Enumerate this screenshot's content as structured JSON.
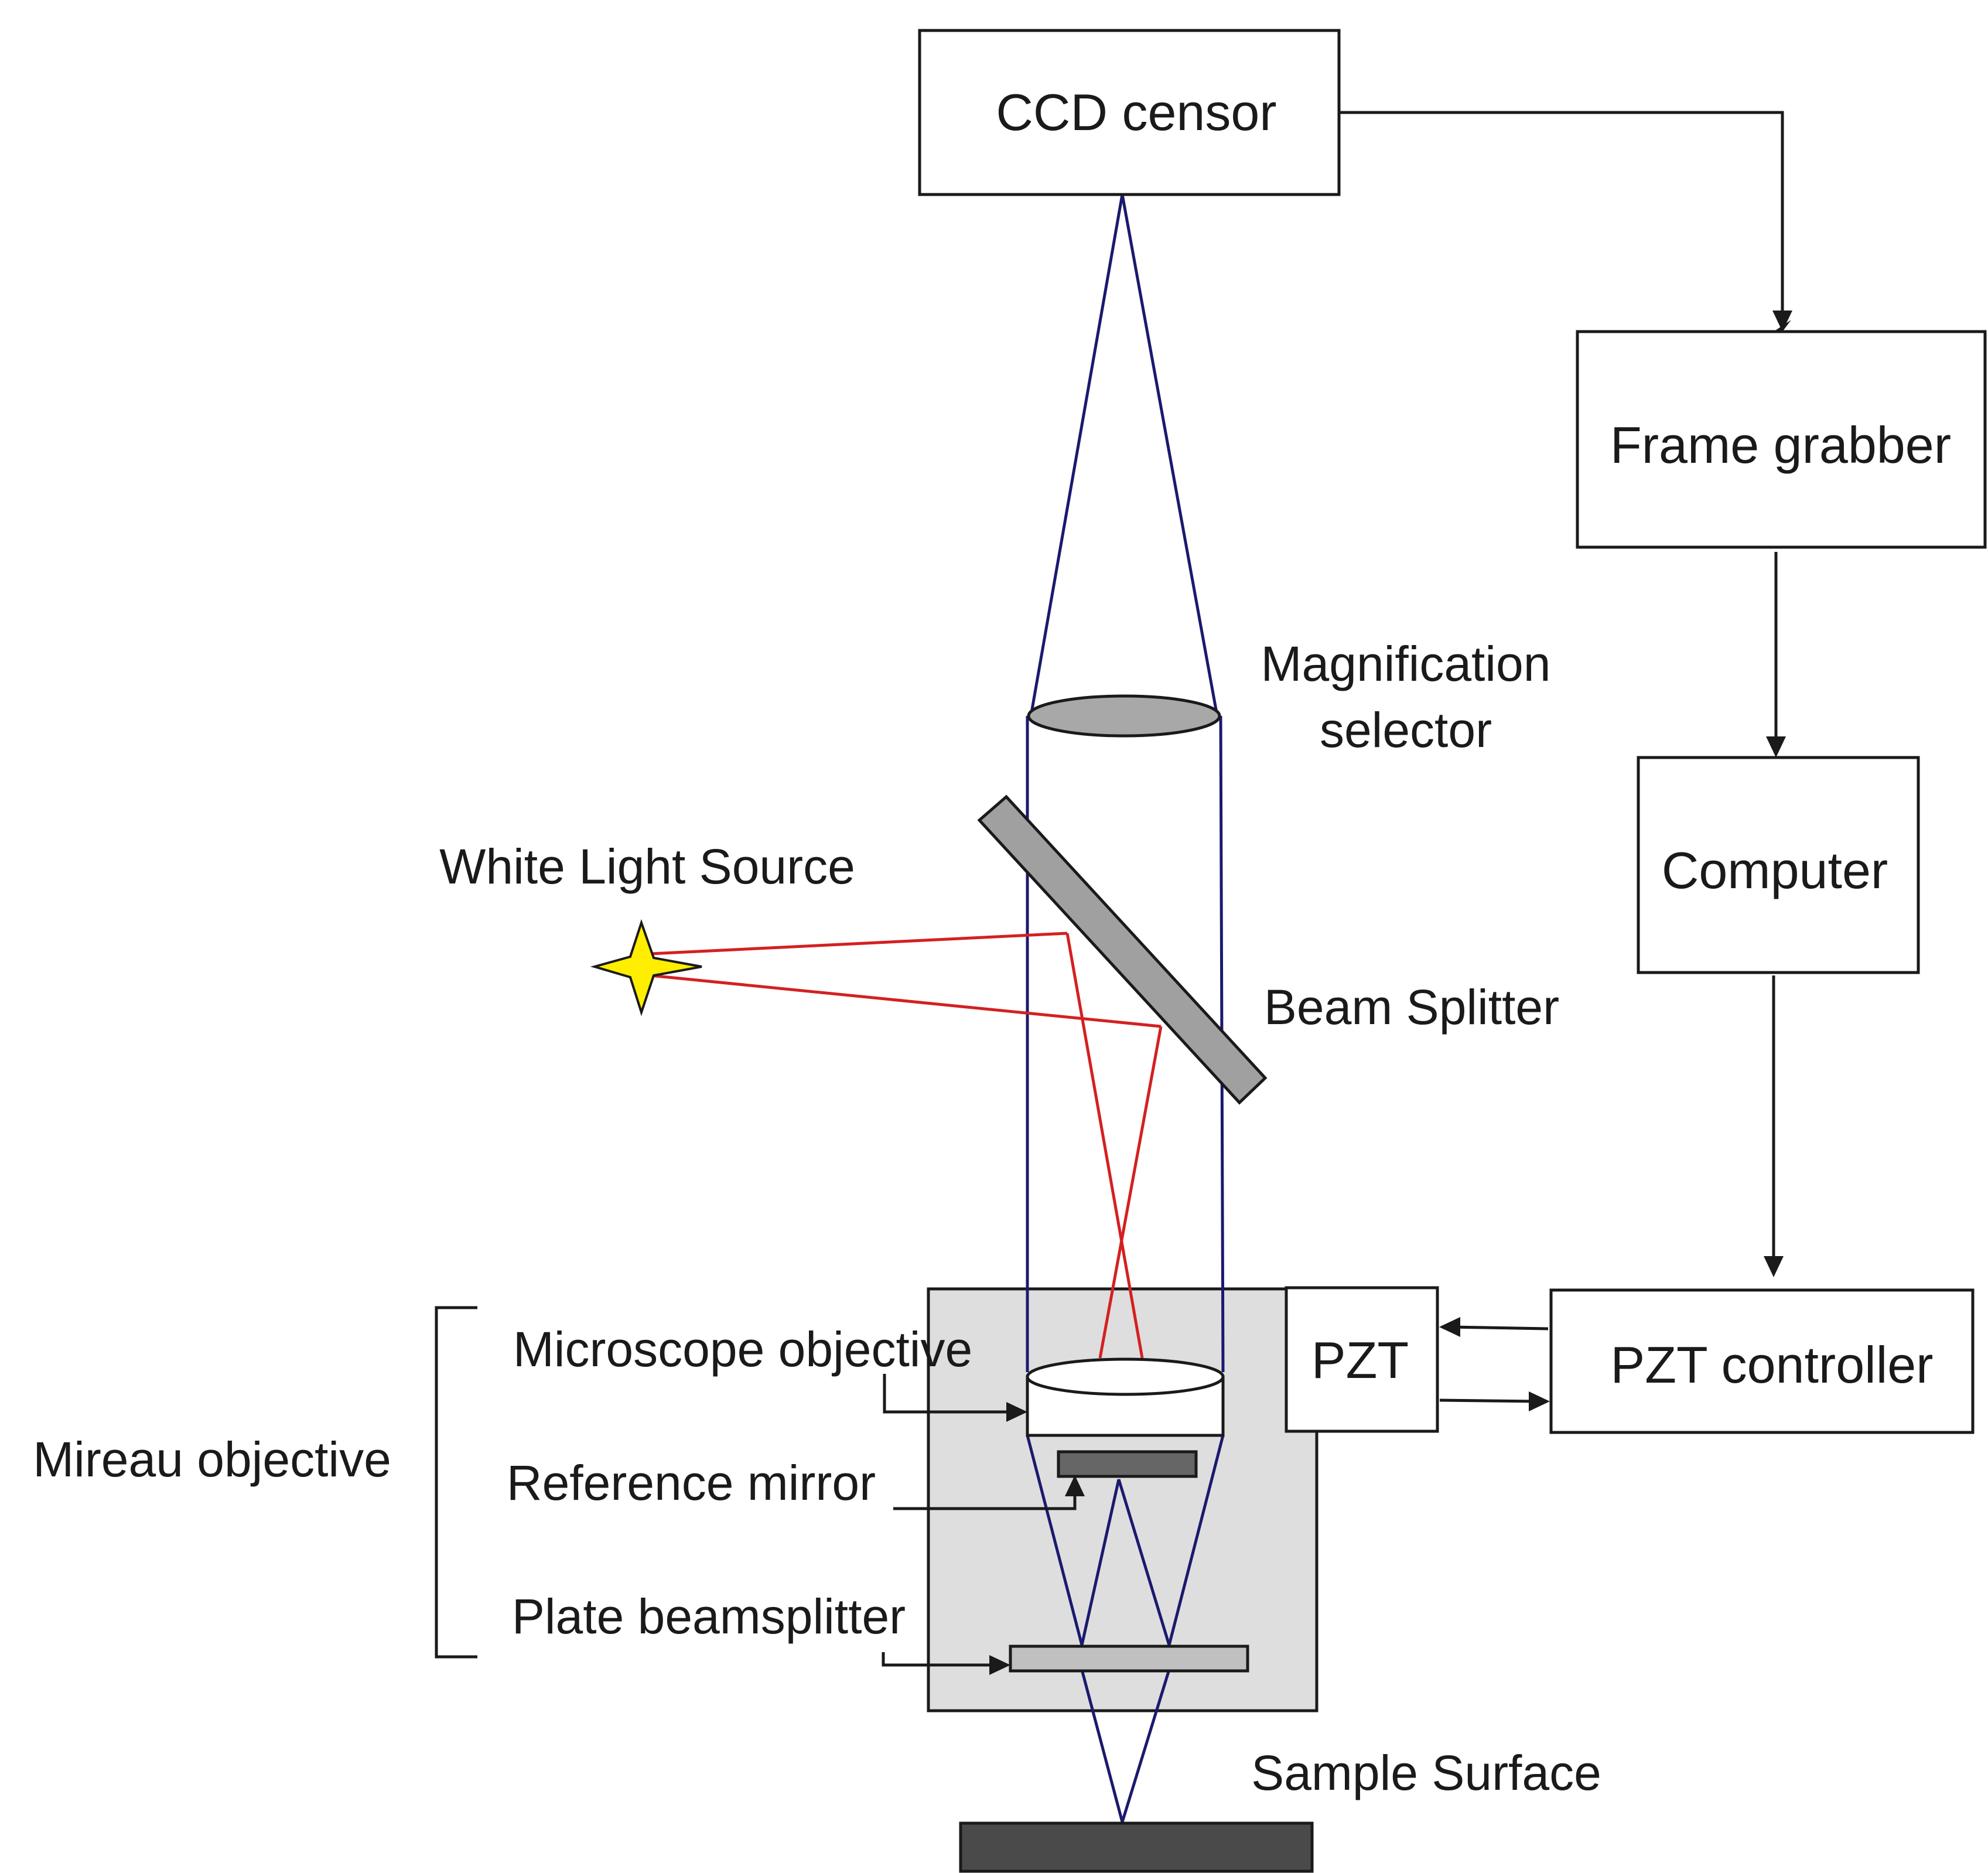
{
  "diagram": {
    "blocks": {
      "ccd": "CCD censor",
      "frame_grabber": "Frame grabber",
      "computer": "Computer",
      "pzt": "PZT",
      "pzt_controller": "PZT controller"
    },
    "labels": {
      "magnification_line1": "Magnification",
      "magnification_line2": "selector",
      "white_light_source": "White Light Source",
      "beam_splitter": "Beam Splitter",
      "microscope_objective": "Microscope objective",
      "reference_mirror": "Reference mirror",
      "plate_beamsplitter": "Plate beamsplitter",
      "mireau_objective": "Mireau objective",
      "sample_surface": "Sample Surface"
    },
    "colors": {
      "optical_ray": "#1a1a6e",
      "light_ray": "#d42020",
      "housing": "#dedede",
      "lens": "#a8a8a8",
      "beam_splitter": "#a0a0a0",
      "reference_mirror": "#666666",
      "plate_beamsplitter": "#c0c0c0",
      "sample": "#4a4a4a",
      "source_star": "#ffee00"
    },
    "icons": [
      "white-light-source-star-icon",
      "lens-icon"
    ]
  }
}
